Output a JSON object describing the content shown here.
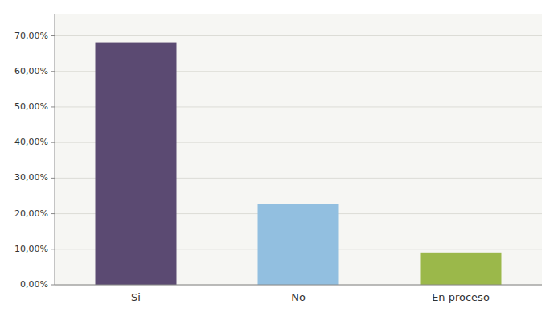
{
  "chart_data": {
    "type": "bar",
    "categories": [
      "Si",
      "No",
      "En proceso"
    ],
    "values": [
      0.6818,
      0.2273,
      0.0909
    ],
    "colors": [
      "#5B4A72",
      "#92BFE0",
      "#9BB84A"
    ],
    "ylim": [
      0.0,
      0.76
    ],
    "yticks": [
      {
        "value": 0.0,
        "label": "0,00%"
      },
      {
        "value": 0.1,
        "label": "10,00%"
      },
      {
        "value": 0.2,
        "label": "20,00%"
      },
      {
        "value": 0.3,
        "label": "30,00%"
      },
      {
        "value": 0.4,
        "label": "40,00%"
      },
      {
        "value": 0.5,
        "label": "50,00%"
      },
      {
        "value": 0.6,
        "label": "60,00%"
      },
      {
        "value": 0.7,
        "label": "70,00%"
      }
    ],
    "grid": true
  }
}
